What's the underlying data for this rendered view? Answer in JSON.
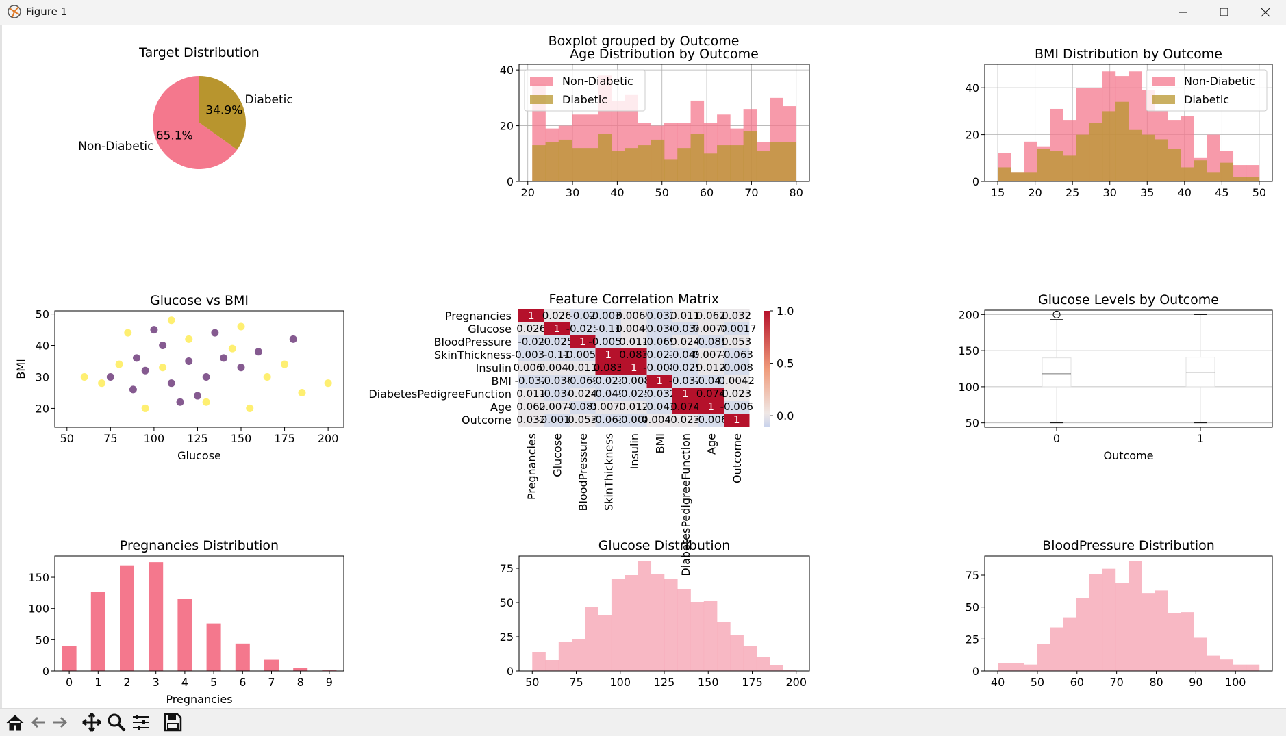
{
  "window": {
    "title": "Figure 1",
    "icon": "matplotlib-icon",
    "controls": [
      "minimize-icon",
      "maximize-icon",
      "close-icon"
    ]
  },
  "colors": {
    "pink": "#f4788d",
    "pink_light": "#f5a0b0",
    "gold": "#b8952e",
    "overlap": "#c99a5e",
    "purple": "#440154",
    "yellow": "#fde725"
  },
  "toolbar": {
    "icons": [
      "home-icon",
      "back-icon",
      "forward-icon",
      "pan-icon",
      "zoom-icon",
      "configure-icon",
      "save-icon"
    ]
  },
  "chart_data": [
    {
      "id": "pie",
      "type": "pie",
      "title": "Target Distribution",
      "labels": [
        "Non-Diabetic",
        "Diabetic"
      ],
      "values": [
        65.1,
        34.9
      ],
      "autopct": [
        "65.1%",
        "34.9%"
      ],
      "colors": [
        "#f4788d",
        "#b8952e"
      ]
    },
    {
      "id": "age",
      "type": "histogram",
      "title": "Age Distribution by Outcome",
      "suptitle": "Boxplot grouped by Outcome",
      "bin_edges": [
        21,
        23.95,
        26.9,
        29.85,
        32.8,
        35.75,
        38.7,
        41.65,
        44.6,
        47.55,
        50.5,
        53.45,
        56.4,
        59.35,
        62.3,
        65.25,
        68.2,
        71.15,
        74.1,
        77.05,
        80
      ],
      "series": [
        {
          "name": "Non-Diabetic",
          "values": [
            35,
            19,
            20,
            24,
            24,
            38,
            29,
            31,
            21,
            20,
            21,
            21,
            29,
            21,
            24,
            19,
            26,
            14,
            30,
            27
          ]
        },
        {
          "name": "Diabetic",
          "values": [
            13,
            14,
            15,
            12,
            12,
            17,
            11,
            12,
            13,
            15,
            8,
            12,
            17,
            10,
            13,
            13,
            18,
            11,
            14,
            14
          ]
        }
      ],
      "ylim": [
        0,
        42
      ],
      "xticks": [
        20,
        30,
        40,
        50,
        60,
        70,
        80
      ],
      "yticks": [
        0,
        20,
        40
      ],
      "legend": "top-left",
      "grid": true
    },
    {
      "id": "bmi",
      "type": "histogram",
      "title": "BMI Distribution by Outcome",
      "bin_edges": [
        15,
        16.75,
        18.5,
        20.25,
        22,
        23.75,
        25.5,
        27.25,
        29,
        30.75,
        32.5,
        34.25,
        36,
        37.75,
        39.5,
        41.25,
        43,
        44.75,
        46.5,
        48.25,
        50
      ],
      "series": [
        {
          "name": "Non-Diabetic",
          "values": [
            12,
            4,
            17,
            15,
            31,
            26,
            40,
            40,
            47,
            45,
            47,
            39,
            30,
            26,
            28,
            10,
            20,
            13,
            7,
            7
          ]
        },
        {
          "name": "Diabetic",
          "values": [
            6,
            4,
            4,
            14,
            13,
            11,
            20,
            25,
            30,
            34,
            22,
            20,
            18,
            14,
            6,
            9,
            4,
            8,
            2,
            2
          ]
        }
      ],
      "ylim": [
        0,
        50
      ],
      "xticks": [
        15,
        20,
        25,
        30,
        35,
        40,
        45,
        50
      ],
      "yticks": [
        0,
        20,
        40
      ],
      "legend": "top-right",
      "grid": true
    },
    {
      "id": "scatter",
      "type": "scatter",
      "title": "Glucose vs BMI",
      "xlabel": "Glucose",
      "ylabel": "BMI",
      "xlim": [
        43,
        209
      ],
      "ylim": [
        14,
        51
      ],
      "xticks": [
        50,
        75,
        100,
        125,
        150,
        175,
        200
      ],
      "yticks": [
        20,
        30,
        40,
        50
      ],
      "series": [
        {
          "color": "#440154",
          "points": [
            [
              95,
              32
            ],
            [
              110,
              28
            ],
            [
              120,
              35
            ],
            [
              130,
              30
            ],
            [
              105,
              40
            ],
            [
              140,
              36
            ],
            [
              88,
              26
            ],
            [
              150,
              33
            ],
            [
              125,
              24
            ],
            [
              100,
              45
            ],
            [
              160,
              38
            ],
            [
              75,
              30
            ],
            [
              180,
              42
            ],
            [
              115,
              22
            ],
            [
              135,
              44
            ],
            [
              90,
              36
            ]
          ]
        },
        {
          "color": "#fde725",
          "points": [
            [
              80,
              34
            ],
            [
              70,
              28
            ],
            [
              150,
              46
            ],
            [
              130,
              22
            ],
            [
              165,
              30
            ],
            [
              110,
              48
            ],
            [
              185,
              25
            ],
            [
              95,
              20
            ],
            [
              145,
              39
            ],
            [
              60,
              30
            ],
            [
              120,
              42
            ],
            [
              200,
              28
            ],
            [
              175,
              34
            ],
            [
              85,
              44
            ],
            [
              155,
              20
            ],
            [
              105,
              33
            ]
          ]
        }
      ]
    },
    {
      "id": "corr",
      "type": "heatmap",
      "title": "Feature Correlation Matrix",
      "labels": [
        "Pregnancies",
        "Glucose",
        "BloodPressure",
        "SkinThickness",
        "Insulin",
        "BMI",
        "DiabetesPedigreeFunction",
        "Age",
        "Outcome"
      ],
      "values": [
        [
          1,
          0.026,
          -0.02,
          -0.0034,
          0.0069,
          -0.032,
          0.011,
          0.062,
          0.032
        ],
        [
          0.026,
          1,
          -0.025,
          -0.11,
          0.0049,
          -0.036,
          -0.034,
          0.0078,
          -0.0017
        ],
        [
          -0.02,
          -0.025,
          1,
          -0.0056,
          0.011,
          -0.069,
          0.024,
          -0.085,
          0.053
        ],
        [
          -0.0034,
          -0.11,
          -0.0056,
          1,
          0.083,
          -0.023,
          -0.049,
          0.0072,
          -0.063
        ],
        [
          0.0069,
          0.0049,
          0.011,
          0.083,
          1,
          -0.008,
          -0.025,
          0.012,
          -0.008
        ],
        [
          -0.032,
          -0.036,
          -0.069,
          -0.023,
          -0.008,
          1,
          -0.032,
          -0.041,
          0.0042
        ],
        [
          0.011,
          -0.034,
          0.024,
          -0.049,
          -0.025,
          -0.032,
          1,
          0.074,
          0.023
        ],
        [
          0.062,
          0.0078,
          -0.085,
          0.0072,
          0.012,
          -0.041,
          0.074,
          1,
          -0.006
        ],
        [
          0.032,
          -0.0017,
          0.053,
          -0.063,
          -0.008,
          0.0042,
          0.023,
          -0.006,
          1
        ]
      ],
      "cells": [
        [
          "1",
          "0.026",
          "-0.02",
          "-0.0034",
          "0.0069",
          "-0.032",
          "0.011",
          "0.062",
          "0.032"
        ],
        [
          "0.026",
          "1",
          "-0.025",
          "-0.11",
          "0.0049",
          "-0.036",
          "-0.034",
          "0.0078",
          "-0.0017"
        ],
        [
          "-0.02",
          "-0.025",
          "1",
          "-0.0056",
          "0.011",
          "-0.069",
          "0.024",
          "-0.085",
          "0.053"
        ],
        [
          "-0.0034",
          "-0.11",
          "-0.0056",
          "1",
          "0.083",
          "-0.023",
          "-0.049",
          "0.0072",
          "-0.063"
        ],
        [
          "0.0069",
          "0.0049",
          "0.011",
          "0.083",
          "1",
          "-0.008",
          "-0.025",
          "0.012",
          "-0.008"
        ],
        [
          "-0.032",
          "-0.036",
          "-0.069",
          "-0.023",
          "-0.008",
          "1",
          "-0.032",
          "-0.041",
          "0.0042"
        ],
        [
          "0.011",
          "-0.034",
          "0.024",
          "-0.049",
          "-0.025",
          "-0.032",
          "1",
          "0.074",
          "0.023"
        ],
        [
          "0.062",
          "0.0078",
          "-0.085",
          "0.0072",
          "0.012",
          "-0.041",
          "0.074",
          "1",
          "-0.006"
        ],
        [
          "0.032",
          "-0.0017",
          "0.053",
          "-0.063",
          "-0.008",
          "0.0042",
          "0.023",
          "-0.006",
          "1"
        ]
      ],
      "colorbar_ticks": [
        "1.0",
        "0.5",
        "0.0"
      ],
      "colorbar_values": [
        1.0,
        0.5,
        0.0
      ],
      "vmin": -0.11,
      "vmax": 1
    },
    {
      "id": "box",
      "type": "boxplot",
      "title": "Glucose Levels by Outcome",
      "xlabel": "Outcome",
      "categories": [
        "0",
        "1"
      ],
      "ylim": [
        44,
        206
      ],
      "yticks": [
        50,
        100,
        150,
        200
      ],
      "boxes": [
        {
          "min": 50,
          "q1": 100,
          "median": 118,
          "q3": 140,
          "max": 193,
          "fliers": [
            200
          ]
        },
        {
          "min": 50,
          "q1": 100,
          "median": 120,
          "q3": 141,
          "max": 200,
          "fliers": []
        }
      ]
    },
    {
      "id": "preg",
      "type": "bar",
      "title": "Pregnancies Distribution",
      "xlabel": "Pregnancies",
      "categories": [
        "0",
        "1",
        "2",
        "3",
        "4",
        "5",
        "6",
        "7",
        "8",
        "9"
      ],
      "values": [
        40,
        127,
        169,
        174,
        115,
        76,
        44,
        18,
        5,
        1
      ],
      "ylim": [
        0,
        184
      ],
      "yticks": [
        0,
        50,
        100,
        150
      ]
    },
    {
      "id": "glucose",
      "type": "histogram",
      "title": "Glucose Distribution",
      "bin_edges": [
        50,
        57.5,
        65,
        72.5,
        80,
        87.5,
        95,
        102.5,
        110,
        117.5,
        125,
        132.5,
        140,
        147.5,
        155,
        162.5,
        170,
        177.5,
        185,
        192.5,
        200
      ],
      "series": [
        {
          "name": "",
          "values": [
            14,
            8,
            21,
            23,
            47,
            41,
            67,
            70,
            80,
            71,
            67,
            60,
            50,
            51,
            36,
            26,
            18,
            10,
            4,
            1
          ]
        }
      ],
      "ylim": [
        0,
        84
      ],
      "xticks": [
        50,
        75,
        100,
        125,
        150,
        175,
        200
      ],
      "yticks": [
        0,
        25,
        50,
        75
      ]
    },
    {
      "id": "bp",
      "type": "histogram",
      "title": "BloodPressure Distribution",
      "bin_edges": [
        40,
        43.3,
        46.6,
        49.9,
        53.2,
        56.5,
        59.8,
        63.1,
        66.4,
        69.7,
        73,
        76.3,
        79.6,
        82.9,
        86.2,
        89.5,
        92.8,
        96.1,
        99.4,
        102.7,
        106
      ],
      "series": [
        {
          "name": "",
          "values": [
            6,
            6,
            5,
            21,
            34,
            42,
            57,
            76,
            80,
            69,
            86,
            61,
            63,
            45,
            46,
            26,
            12,
            9,
            5,
            5
          ]
        }
      ],
      "ylim": [
        0,
        90
      ],
      "xticks": [
        40,
        50,
        60,
        70,
        80,
        90,
        100
      ],
      "yticks": [
        0,
        25,
        50,
        75
      ]
    }
  ]
}
